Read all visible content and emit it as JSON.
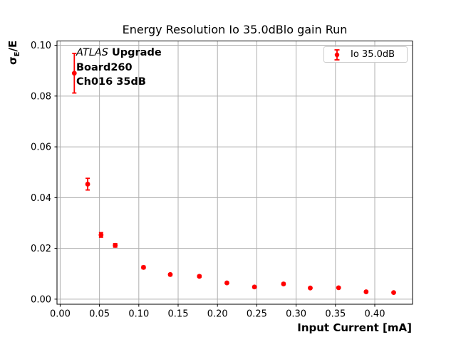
{
  "chart_data": {
    "type": "scatter",
    "title": "Energy Resolution Io 35.0dBlo gain Run",
    "xlabel": "Input Current [mA]",
    "ylabel": {
      "sigma": "σ",
      "subscript": "E",
      "rest": "/E"
    },
    "annotation": {
      "experiment": "ATLAS",
      "line1_rest": " Upgrade",
      "line2": "Board260",
      "line3": "Ch016 35dB"
    },
    "legend": {
      "label": "Io 35.0dB",
      "position": "upper right"
    },
    "series": [
      {
        "name": "Io 35.0dB",
        "marker": "o",
        "color": "#ff0000",
        "x": [
          0.018,
          0.035,
          0.052,
          0.07,
          0.106,
          0.14,
          0.177,
          0.212,
          0.247,
          0.284,
          0.318,
          0.354,
          0.389,
          0.424
        ],
        "y": [
          0.089,
          0.0453,
          0.0253,
          0.0212,
          0.0125,
          0.0097,
          0.009,
          0.0064,
          0.0048,
          0.006,
          0.0044,
          0.0045,
          0.0029,
          0.0026
        ],
        "yerr": [
          0.0078,
          0.0023,
          0.0009,
          0.0007,
          0.0005,
          0.0004,
          0.0004,
          0.0003,
          0.0003,
          0.0003,
          0.0002,
          0.0002,
          0.0002,
          0.0002
        ]
      }
    ],
    "xticks": [
      0.0,
      0.05,
      0.1,
      0.15,
      0.2,
      0.25,
      0.3,
      0.35,
      0.4
    ],
    "yticks": [
      0.0,
      0.02,
      0.04,
      0.06,
      0.08,
      0.1
    ],
    "xlim": [
      -0.004,
      0.448
    ],
    "ylim": [
      -0.002,
      0.1017
    ],
    "grid": true,
    "colors": {
      "marker": "#ff0000",
      "grid": "#b0b0b0",
      "spine": "#000000",
      "legend_border": "#cccccc",
      "background": "#ffffff"
    }
  }
}
